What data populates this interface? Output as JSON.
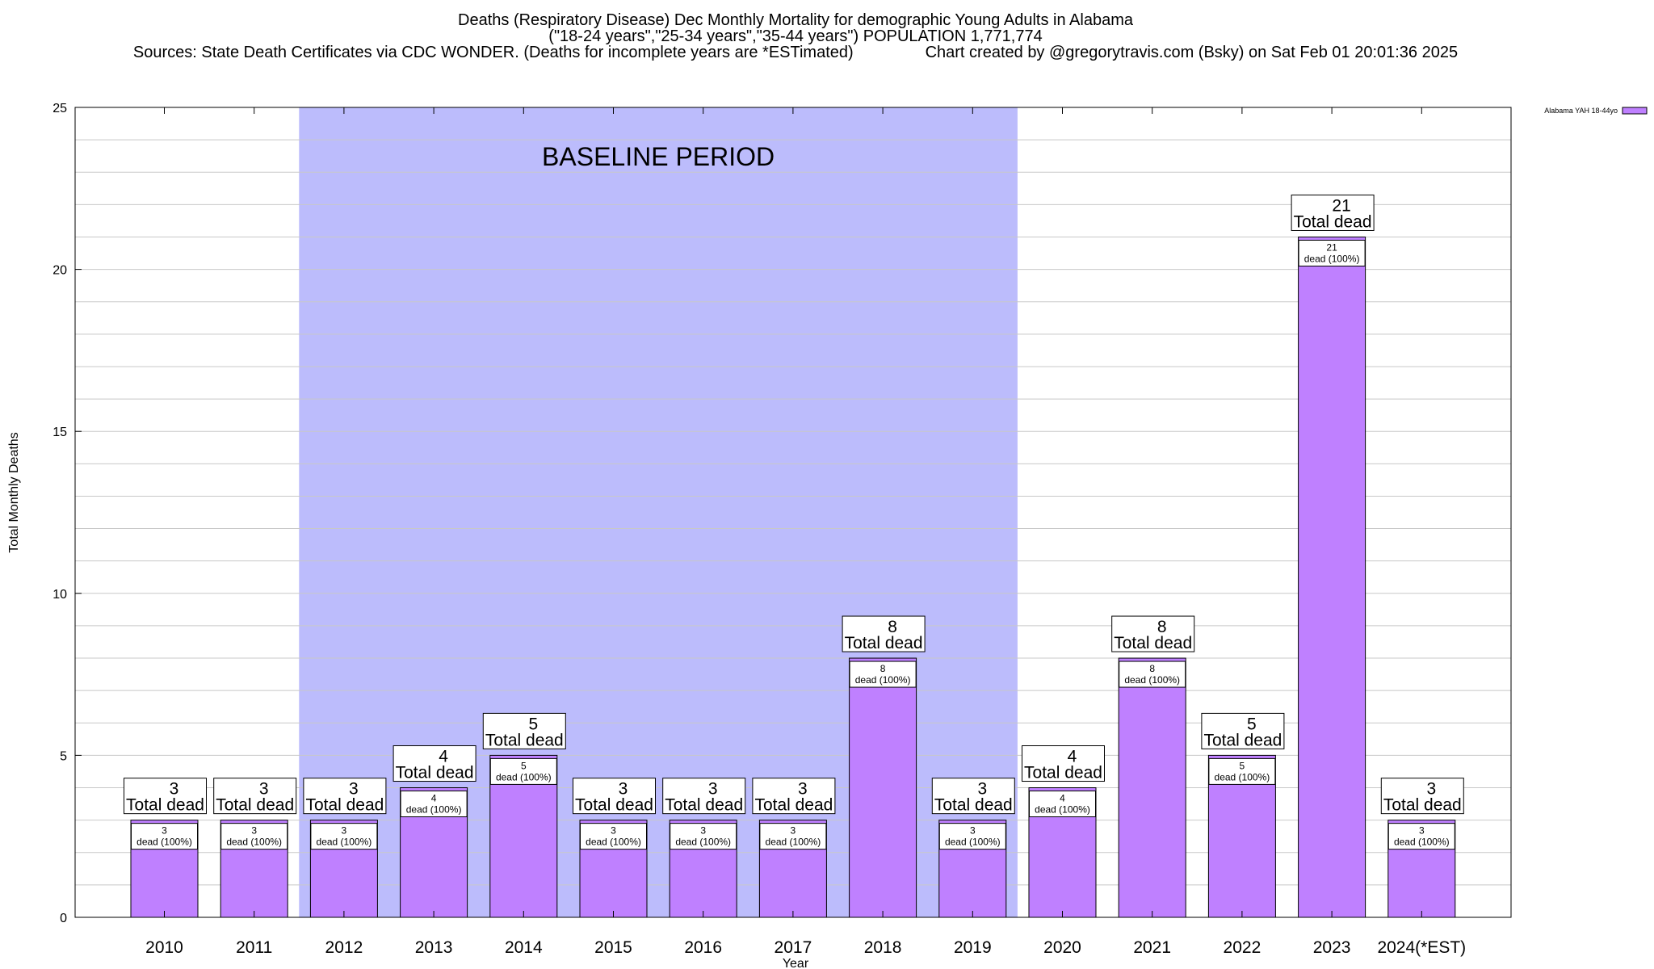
{
  "chart_data": {
    "type": "bar",
    "title_lines": [
      "Deaths (Respiratory Disease) Dec Monthly Mortality for demographic Young Adults in Alabama",
      "(\"18-24 years\",\"25-34 years\",\"35-44 years\") POPULATION 1,771,774",
      "Sources: State Death Certificates via CDC WONDER. (Deaths for incomplete years are *ESTimated)                Chart created by @gregorytravis.com (Bsky) on Sat Feb 01 20:01:36 2025"
    ],
    "xlabel": "Year",
    "ylabel": "Total Monthly Deaths",
    "ylim": [
      0,
      25
    ],
    "yticks": [
      0,
      5,
      10,
      15,
      20,
      25
    ],
    "minor_y_step": 1,
    "categories": [
      "2010",
      "2011",
      "2012",
      "2013",
      "2014",
      "2015",
      "2016",
      "2017",
      "2018",
      "2019",
      "2020",
      "2021",
      "2022",
      "2023",
      "2024(*EST)"
    ],
    "series": [
      {
        "name": "Alabama YAH 18-44yo",
        "color": "#bf80ff",
        "values": [
          3,
          3,
          3,
          4,
          5,
          3,
          3,
          3,
          8,
          3,
          4,
          8,
          5,
          21,
          3
        ],
        "total_labels": [
          "3",
          "3",
          "3",
          "4",
          "5",
          "3",
          "3",
          "3",
          "8",
          "3",
          "4",
          "8",
          "5",
          "21",
          "3"
        ],
        "inner_labels": [
          "3",
          "3",
          "3",
          "4",
          "5",
          "3",
          "3",
          "3",
          "8",
          "3",
          "4",
          "8",
          "5",
          "21",
          "3"
        ]
      }
    ],
    "total_suffix": "Total dead",
    "inner_suffix": "dead (100%)",
    "baseline": {
      "label": "BASELINE PERIOD",
      "start": "2012",
      "end": "2019",
      "color": "#bcbcfc"
    },
    "grid": true,
    "legend_position": "top-right"
  }
}
